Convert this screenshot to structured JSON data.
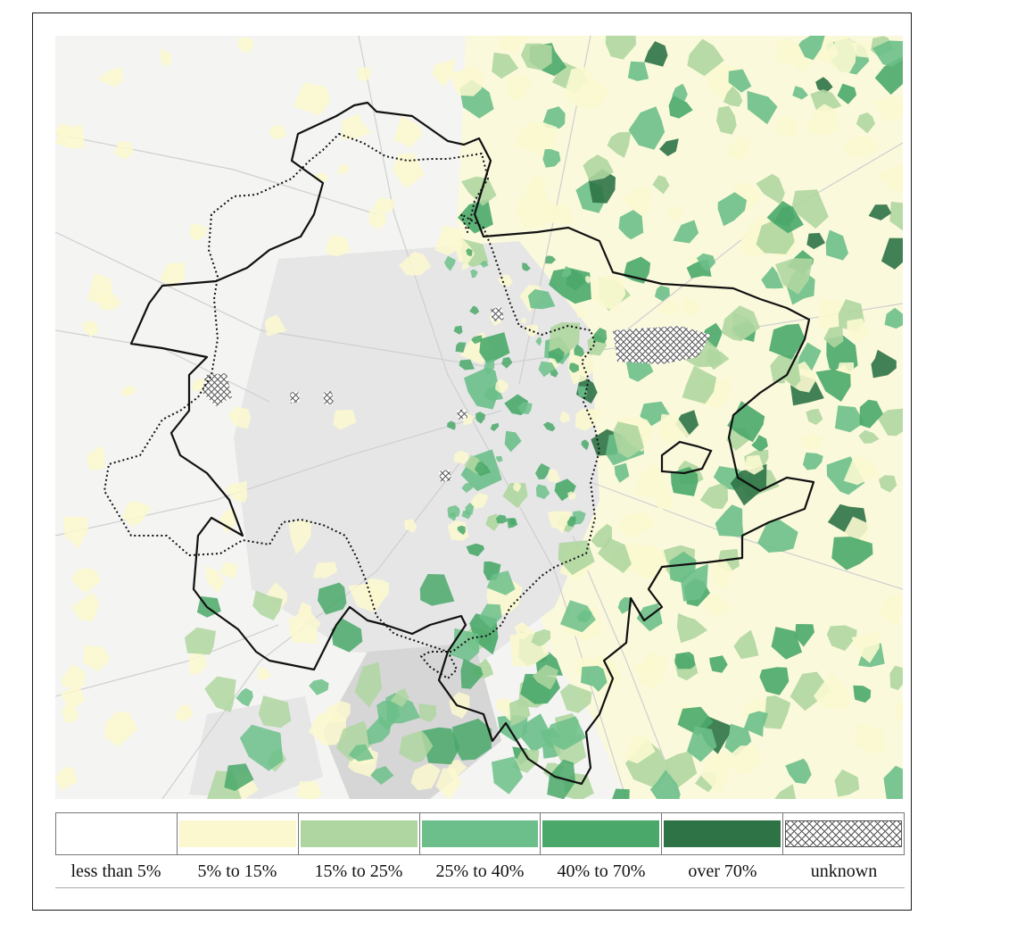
{
  "map": {
    "colors": {
      "land": "#f4f4f2",
      "urban": "#e6e6e6",
      "urban_dark": "#d6d6d6",
      "roads": "#cfcfcf",
      "outline": "#111111"
    },
    "features": [
      "solid-boundary",
      "dotted-boundary",
      "inner-island-boundary",
      "choropleth-cells",
      "unknown-hatched-areas"
    ]
  },
  "legend": {
    "categories": [
      {
        "label": "less than 5%",
        "color": "#ffffff",
        "pattern": "none"
      },
      {
        "label": "5% to 15%",
        "color": "#fbf8cf",
        "pattern": "none"
      },
      {
        "label": "15% to 25%",
        "color": "#afd6a0",
        "pattern": "none"
      },
      {
        "label": "25% to 40%",
        "color": "#6cbf8a",
        "pattern": "none"
      },
      {
        "label": "40% to 70%",
        "color": "#4aa86a",
        "pattern": "none"
      },
      {
        "label": "over 70%",
        "color": "#2e7346",
        "pattern": "none"
      },
      {
        "label": "unknown",
        "color": "#ffffff",
        "pattern": "crosshatch"
      }
    ]
  }
}
